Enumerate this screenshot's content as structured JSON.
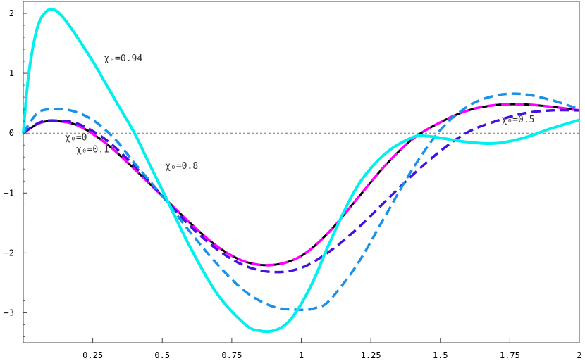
{
  "chart_data": {
    "type": "line",
    "title": "",
    "xlabel": "",
    "ylabel": "",
    "xlim": [
      0,
      2
    ],
    "ylim": [
      -3.5,
      2.2
    ],
    "grid": false,
    "legend": "none",
    "x_ticks": [
      0.25,
      0.5,
      0.75,
      1,
      1.25,
      1.5,
      1.75,
      2
    ],
    "x_tick_labels": [
      "0.25",
      "0.5",
      "0.75",
      "1",
      "1.25",
      "1.5",
      "1.75",
      "2"
    ],
    "y_ticks": [
      2,
      1,
      0,
      -1,
      -2,
      -3
    ],
    "y_tick_labels": [
      "2",
      "1",
      "0",
      "−1",
      "−2",
      "−3"
    ],
    "reference_line": {
      "y": 0,
      "style": "dotted",
      "color": "#777777"
    },
    "series": [
      {
        "color": "#000000",
        "dash": "solid",
        "width": 3,
        "x": [
          0,
          0.06,
          0.12,
          0.2,
          0.3,
          0.4,
          0.5,
          0.6,
          0.7,
          0.8,
          0.9,
          1.0,
          1.1,
          1.2,
          1.3,
          1.4,
          1.5,
          1.6,
          1.7,
          1.8,
          1.9,
          2.0
        ],
        "y": [
          0,
          0.17,
          0.2,
          0.12,
          -0.18,
          -0.6,
          -1.05,
          -1.5,
          -1.9,
          -2.15,
          -2.2,
          -2.05,
          -1.65,
          -1.1,
          -0.55,
          -0.1,
          0.18,
          0.38,
          0.47,
          0.48,
          0.44,
          0.38
        ]
      },
      {
        "color": "#ff00ff",
        "dash": "dashed",
        "width": 3.5,
        "x": [
          0,
          0.06,
          0.12,
          0.2,
          0.3,
          0.4,
          0.5,
          0.6,
          0.7,
          0.8,
          0.9,
          1.0,
          1.1,
          1.2,
          1.3,
          1.4,
          1.5,
          1.6,
          1.7,
          1.8,
          1.9,
          2.0
        ],
        "y": [
          0,
          0.17,
          0.2,
          0.12,
          -0.18,
          -0.6,
          -1.05,
          -1.5,
          -1.9,
          -2.15,
          -2.2,
          -2.05,
          -1.65,
          -1.1,
          -0.55,
          -0.1,
          0.18,
          0.38,
          0.47,
          0.48,
          0.44,
          0.38
        ]
      },
      {
        "color": "#4411dd",
        "dash": "dashed",
        "width": 3.5,
        "x": [
          0,
          0.06,
          0.12,
          0.2,
          0.3,
          0.4,
          0.5,
          0.6,
          0.7,
          0.8,
          0.9,
          1.0,
          1.1,
          1.2,
          1.3,
          1.4,
          1.5,
          1.6,
          1.7,
          1.8,
          1.9,
          2.0
        ],
        "y": [
          0,
          0.18,
          0.21,
          0.15,
          -0.12,
          -0.55,
          -1.05,
          -1.55,
          -1.95,
          -2.22,
          -2.32,
          -2.25,
          -1.98,
          -1.6,
          -1.15,
          -0.7,
          -0.3,
          0.02,
          0.2,
          0.33,
          0.38,
          0.38
        ]
      },
      {
        "color": "#1a90e8",
        "dash": "dashed",
        "width": 3.5,
        "x": [
          0,
          0.05,
          0.1,
          0.17,
          0.25,
          0.33,
          0.4,
          0.5,
          0.6,
          0.7,
          0.8,
          0.9,
          1.0,
          1.05,
          1.1,
          1.2,
          1.3,
          1.4,
          1.5,
          1.6,
          1.7,
          1.8,
          1.9,
          2.0
        ],
        "y": [
          0,
          0.33,
          0.4,
          0.38,
          0.22,
          -0.1,
          -0.5,
          -1.05,
          -1.65,
          -2.2,
          -2.65,
          -2.9,
          -2.95,
          -2.92,
          -2.8,
          -2.2,
          -1.4,
          -0.6,
          0.05,
          0.45,
          0.63,
          0.65,
          0.55,
          0.4
        ]
      },
      {
        "color": "#00f0f0",
        "dash": "solid",
        "width": 4,
        "x": [
          0,
          0.02,
          0.05,
          0.08,
          0.11,
          0.14,
          0.18,
          0.25,
          0.3,
          0.35,
          0.4,
          0.45,
          0.5,
          0.6,
          0.7,
          0.8,
          0.85,
          0.9,
          0.95,
          1.0,
          1.05,
          1.1,
          1.2,
          1.3,
          1.4,
          1.45,
          1.5,
          1.6,
          1.7,
          1.8,
          1.9,
          2.0
        ],
        "y": [
          0,
          1.0,
          1.75,
          2.02,
          2.06,
          1.95,
          1.7,
          1.2,
          0.8,
          0.4,
          0.0,
          -0.48,
          -0.95,
          -1.9,
          -2.7,
          -3.2,
          -3.3,
          -3.3,
          -3.17,
          -2.85,
          -2.4,
          -1.85,
          -0.9,
          -0.35,
          -0.07,
          -0.05,
          -0.08,
          -0.15,
          -0.17,
          -0.08,
          0.08,
          0.22
        ]
      }
    ],
    "annotations": [
      {
        "text": "χ₀=0.94",
        "x": 0.29,
        "y": 1.2
      },
      {
        "text": "χ₀=0",
        "x": 0.15,
        "y": -0.12
      },
      {
        "text": "χ₀=0.1",
        "x": 0.19,
        "y": -0.32
      },
      {
        "text": "χ₀=0.8",
        "x": 0.51,
        "y": -0.6
      },
      {
        "text": "χ₀=0.5",
        "x": 1.72,
        "y": 0.18
      }
    ]
  }
}
